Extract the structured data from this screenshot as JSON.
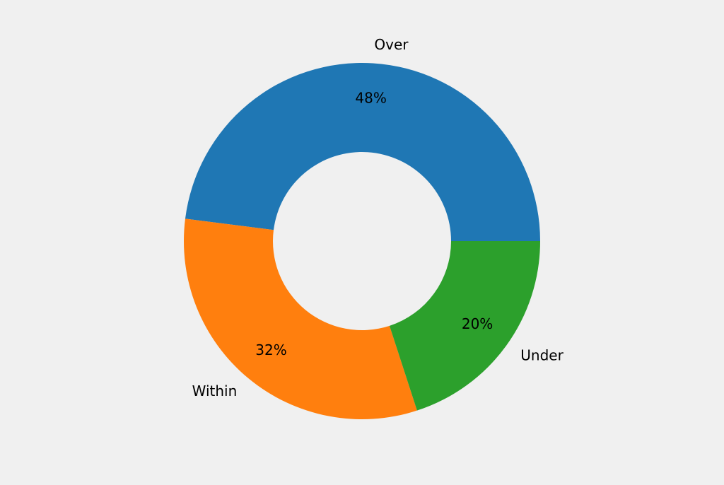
{
  "chart_data": {
    "type": "pie",
    "donut": true,
    "categories": [
      "Over",
      "Within",
      "Under"
    ],
    "values": [
      48,
      32,
      20
    ],
    "value_labels": [
      "48%",
      "32%",
      "20%"
    ],
    "colors": [
      "#1f77b4",
      "#ff7f0e",
      "#2ca02c"
    ],
    "start_angle_deg": 0,
    "direction": "counterclockwise",
    "background": "#f0f0f0"
  }
}
